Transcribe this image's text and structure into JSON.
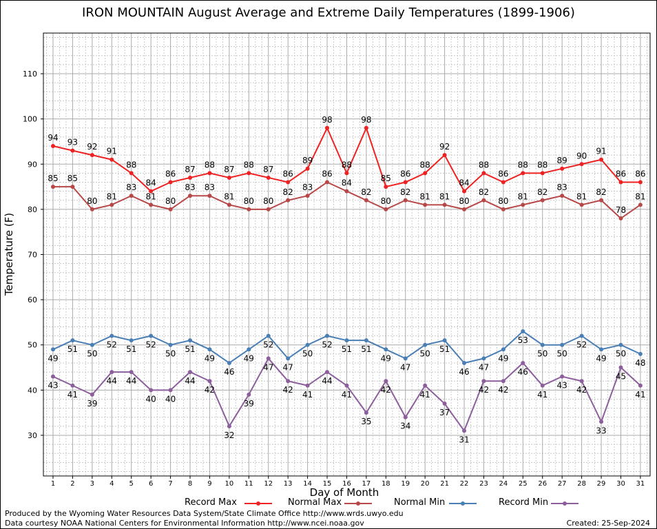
{
  "chart_data": {
    "type": "line",
    "title": "IRON MOUNTAIN August Average and Extreme Daily Temperatures (1899-1906)",
    "xlabel": "Day of Month",
    "ylabel": "Temperature (F)",
    "x": [
      1,
      2,
      3,
      4,
      5,
      6,
      7,
      8,
      9,
      10,
      11,
      12,
      13,
      14,
      15,
      16,
      17,
      18,
      19,
      20,
      21,
      22,
      23,
      24,
      25,
      26,
      27,
      28,
      29,
      30,
      31
    ],
    "ylim": [
      21,
      119
    ],
    "yticks": [
      30,
      40,
      50,
      60,
      70,
      80,
      90,
      100,
      110
    ],
    "grid": true,
    "series": [
      {
        "name": "Record Max",
        "color": "#ee2222",
        "values": [
          94,
          93,
          92,
          91,
          88,
          84,
          86,
          87,
          88,
          87,
          88,
          87,
          86,
          89,
          98,
          88,
          98,
          85,
          86,
          88,
          92,
          84,
          88,
          86,
          88,
          88,
          89,
          90,
          91,
          86,
          86
        ],
        "labels": [
          "94",
          "93",
          "92",
          "91",
          "88",
          "84",
          "86",
          "87",
          "88",
          "87",
          "88",
          "87",
          "86",
          "89",
          "98",
          "88",
          "98",
          "85",
          "86",
          "88",
          "92",
          "84",
          "88",
          "86",
          "88",
          "88",
          "89",
          "90",
          "91",
          "86",
          "86"
        ]
      },
      {
        "name": "Normal Max",
        "color": "#b84848",
        "values": [
          85,
          85,
          80,
          81,
          83,
          81,
          80,
          83,
          83,
          81,
          80,
          80,
          82,
          83,
          86,
          84,
          82,
          80,
          82,
          81,
          81,
          80,
          82,
          80,
          81,
          82,
          83,
          81,
          82,
          78,
          81
        ],
        "labels": [
          "85",
          "85",
          "80",
          "81",
          "83",
          "81",
          "80",
          "83",
          "83",
          "81",
          "80",
          "80",
          "82",
          "83",
          "86",
          "84",
          "82",
          "80",
          "82",
          "81",
          "81",
          "80",
          "82",
          "80",
          "81",
          "82",
          "83",
          "81",
          "82",
          "78",
          "81"
        ]
      },
      {
        "name": "Normal Min",
        "color": "#4a7fb5",
        "values": [
          49,
          51,
          50,
          52,
          51,
          52,
          50,
          51,
          49,
          46,
          49,
          52,
          47,
          50,
          52,
          51,
          51,
          49,
          47,
          50,
          51,
          46,
          47,
          49,
          53,
          50,
          50,
          52,
          49,
          50,
          48
        ],
        "labels": [
          "49",
          "51",
          "50",
          "52",
          "51",
          "52",
          "50",
          "51",
          "49",
          "46",
          "49",
          "52",
          "47",
          "50",
          "52",
          "51",
          "51",
          "49",
          "47",
          "50",
          "51",
          "46",
          "47",
          "49",
          "53",
          "50",
          "50",
          "52",
          "49",
          "50",
          "48"
        ]
      },
      {
        "name": "Record Min",
        "color": "#8c5f9c",
        "values": [
          43,
          41,
          39,
          44,
          44,
          40,
          40,
          44,
          42,
          32,
          39,
          47,
          42,
          41,
          44,
          41,
          35,
          42,
          34,
          41,
          37,
          31,
          42,
          42,
          46,
          41,
          43,
          42,
          33,
          45,
          41
        ],
        "labels": [
          "43",
          "41",
          "39",
          "44",
          "44",
          "40",
          "40",
          "44",
          "42",
          "32",
          "39",
          "47",
          "42",
          "41",
          "44",
          "41",
          "35",
          "42",
          "34",
          "41",
          "37",
          "31",
          "42",
          "42",
          "46",
          "41",
          "43",
          "42",
          "33",
          "45",
          "41"
        ]
      }
    ]
  },
  "footer": {
    "produced_by": "Produced by the Wyoming Water Resources Data System/State Climate Office http://www.wrds.uwyo.edu",
    "courtesy": "Data courtesy NOAA National Centers for Environmental Information http://www.ncei.noaa.gov",
    "created": "Created:  25-Sep-2024"
  }
}
